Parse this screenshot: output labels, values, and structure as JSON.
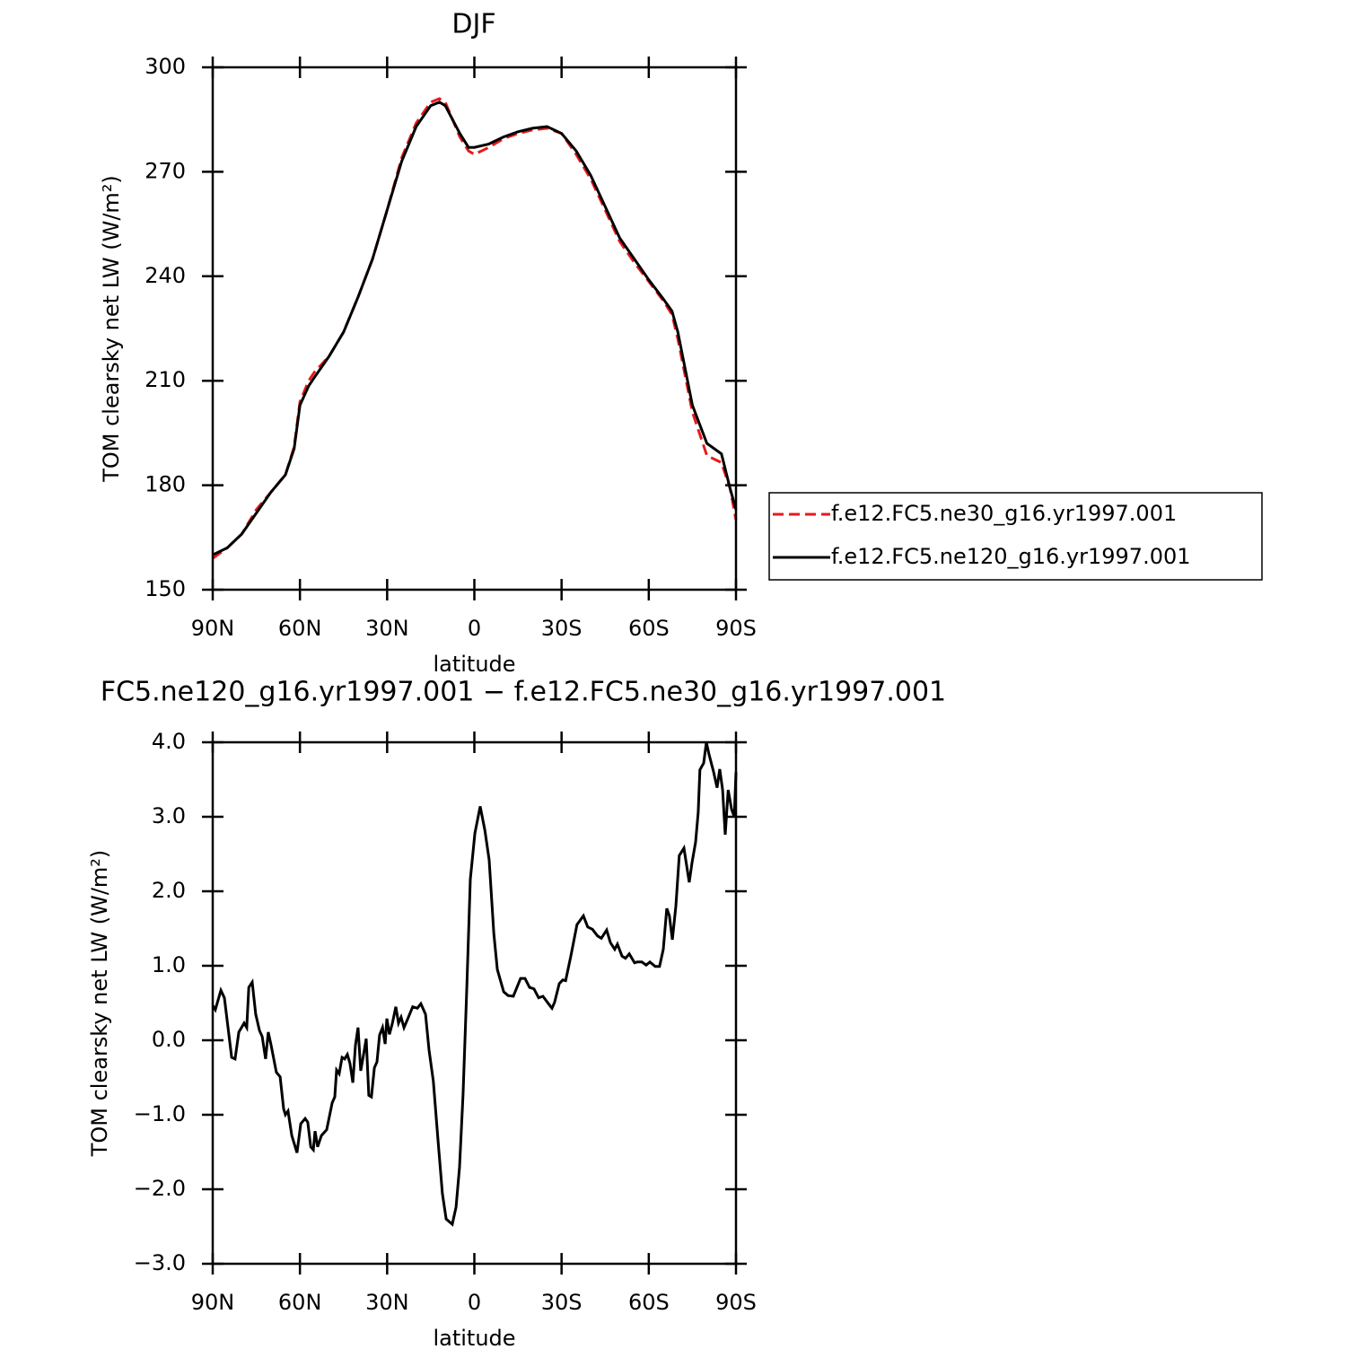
{
  "chart_data": [
    {
      "type": "line",
      "title": "DJF",
      "xlabel": "latitude",
      "ylabel": "TOM clearsky net LW (W/m²)",
      "x": [
        90,
        85,
        80,
        75,
        70,
        65,
        62,
        60,
        57,
        55,
        50,
        45,
        40,
        35,
        30,
        25,
        20,
        15,
        12,
        10,
        5,
        2,
        0,
        -5,
        -10,
        -15,
        -20,
        -25,
        -30,
        -35,
        -40,
        -45,
        -50,
        -55,
        -60,
        -65,
        -68,
        -70,
        -75,
        -80,
        -85,
        -88,
        -90
      ],
      "series": [
        {
          "name": "f.e12.FC5.ne30_g16.yr1997.001",
          "color": "#e8191c",
          "linestyle": "dashed",
          "values": [
            159,
            162,
            166,
            173,
            178,
            183,
            191,
            204,
            210,
            212.5,
            217,
            224,
            234,
            245,
            259,
            274,
            284,
            290,
            291,
            290,
            280,
            276,
            275,
            277,
            279.5,
            281,
            282,
            282.5,
            281,
            275,
            268,
            259,
            250,
            244,
            238.5,
            233,
            229,
            222,
            201,
            188.5,
            186.5,
            179,
            170
          ]
        },
        {
          "name": "f.e12.FC5.ne120_g16.yr1997.001",
          "color": "#000000",
          "linestyle": "solid",
          "values": [
            160,
            162,
            166,
            172,
            178,
            183,
            190.5,
            203,
            208.5,
            211,
            217,
            224,
            234,
            245,
            259,
            273,
            283,
            289,
            290,
            289,
            281,
            277,
            277,
            278,
            280,
            281.5,
            282.5,
            283,
            281,
            276,
            269,
            260,
            251,
            245,
            239,
            233.5,
            230,
            224,
            203,
            192,
            189,
            179,
            173
          ]
        }
      ],
      "xlim": [
        90,
        -90
      ],
      "xticks": [
        {
          "value": 90,
          "label": "90N"
        },
        {
          "value": 60,
          "label": "60N"
        },
        {
          "value": 30,
          "label": "30N"
        },
        0,
        {
          "value": -30,
          "label": "30S"
        },
        {
          "value": -60,
          "label": "60S"
        },
        {
          "value": -90,
          "label": "90S"
        }
      ],
      "ylim": [
        150,
        300
      ],
      "yticks": [
        150,
        180,
        210,
        240,
        270,
        300
      ],
      "legend": "right"
    },
    {
      "type": "line",
      "title": "FC5.ne120_g16.yr1997.001 − f.e12.FC5.ne30_g16.yr1997.001",
      "xlabel": "latitude",
      "ylabel": "TOM clearsky net LW (W/m²)",
      "x": [
        90,
        89.1,
        87.2,
        86.0,
        83.5,
        82.3,
        81.0,
        79.2,
        78.3,
        77.6,
        76.4,
        75.2,
        73.9,
        73.0,
        71.8,
        70.9,
        69.9,
        68.1,
        66.8,
        65.6,
        65.0,
        64.1,
        62.8,
        61.0,
        59.7,
        58.2,
        57.3,
        56.3,
        55.4,
        54.8,
        53.9,
        52.6,
        50.8,
        48.9,
        48.0,
        47.4,
        46.5,
        45.5,
        44.6,
        43.7,
        42.8,
        41.8,
        40.9,
        40.0,
        39.1,
        38.1,
        37.2,
        36.3,
        35.4,
        34.4,
        33.5,
        32.6,
        31.6,
        30.7,
        30.1,
        29.2,
        28.2,
        27.0,
        26.1,
        25.2,
        24.2,
        23.0,
        21.2,
        19.6,
        18.4,
        16.8,
        15.6,
        14.1,
        12.5,
        11.0,
        9.7,
        7.6,
        6.3,
        5.1,
        3.9,
        2.6,
        1.4,
        -0.2,
        -2.0,
        -3.6,
        -5.1,
        -6.7,
        -7.9,
        -10.1,
        -11.6,
        -13.4,
        -15.9,
        -17.4,
        -19.0,
        -20.5,
        -22.1,
        -23.6,
        -25.5,
        -26.7,
        -27.6,
        -29.2,
        -30.4,
        -31.4,
        -33.2,
        -35.3,
        -37.5,
        -39.0,
        -40.6,
        -42.4,
        -43.7,
        -45.5,
        -46.8,
        -48.3,
        -49.2,
        -50.8,
        -52.0,
        -53.3,
        -55.1,
        -56.0,
        -57.6,
        -59.1,
        -60.4,
        -62.2,
        -63.7,
        -65.0,
        -66.2,
        -67.1,
        -68.1,
        -69.3,
        -70.5,
        -72.1,
        -73.9,
        -74.9,
        -76.1,
        -77.0,
        -77.6,
        -78.9,
        -79.8,
        -80.7,
        -82.3,
        -83.5,
        -84.4,
        -85.4,
        -86.3,
        -87.3,
        -88.5,
        -89.4,
        -90
      ],
      "series": [
        {
          "color": "#000000",
          "linestyle": "solid",
          "values": [
            0.47,
            0.41,
            0.67,
            0.57,
            -0.23,
            -0.25,
            0.11,
            0.23,
            0.17,
            0.71,
            0.78,
            0.35,
            0.13,
            0.05,
            -0.25,
            0.11,
            -0.07,
            -0.43,
            -0.49,
            -0.92,
            -1.0,
            -0.95,
            -1.28,
            -1.51,
            -1.12,
            -1.05,
            -1.1,
            -1.43,
            -1.47,
            -1.22,
            -1.43,
            -1.28,
            -1.2,
            -0.84,
            -0.76,
            -0.4,
            -0.45,
            -0.23,
            -0.25,
            -0.19,
            -0.31,
            -0.57,
            -0.07,
            0.17,
            -0.41,
            -0.19,
            0.02,
            -0.74,
            -0.76,
            -0.37,
            -0.29,
            0.07,
            0.17,
            -0.05,
            0.29,
            0.08,
            0.23,
            0.45,
            0.23,
            0.31,
            0.17,
            0.28,
            0.45,
            0.43,
            0.49,
            0.35,
            -0.13,
            -0.55,
            -1.34,
            -2.06,
            -2.4,
            -2.47,
            -2.24,
            -1.7,
            -0.73,
            0.71,
            2.16,
            2.78,
            3.14,
            2.82,
            2.42,
            1.43,
            0.95,
            0.65,
            0.6,
            0.59,
            0.83,
            0.83,
            0.71,
            0.69,
            0.57,
            0.59,
            0.49,
            0.43,
            0.51,
            0.76,
            0.81,
            0.8,
            1.13,
            1.55,
            1.67,
            1.52,
            1.49,
            1.4,
            1.37,
            1.48,
            1.31,
            1.22,
            1.29,
            1.13,
            1.1,
            1.16,
            1.04,
            1.05,
            1.05,
            1.01,
            1.05,
            0.99,
            0.99,
            1.22,
            1.77,
            1.67,
            1.35,
            1.8,
            2.48,
            2.58,
            2.12,
            2.39,
            2.66,
            3.06,
            3.63,
            3.72,
            4.0,
            3.84,
            3.6,
            3.39,
            3.64,
            3.36,
            2.76,
            3.36,
            3.1,
            3.0,
            3.6
          ]
        }
      ],
      "xlim": [
        90,
        -90
      ],
      "xticks": [
        {
          "value": 90,
          "label": "90N"
        },
        {
          "value": 60,
          "label": "60N"
        },
        {
          "value": 30,
          "label": "30N"
        },
        0,
        {
          "value": -30,
          "label": "30S"
        },
        {
          "value": -60,
          "label": "60S"
        },
        {
          "value": -90,
          "label": "90S"
        }
      ],
      "ylim": [
        -3,
        4
      ],
      "yticks": [
        {
          "value": -3,
          "label": "−3.0"
        },
        {
          "value": -2,
          "label": "−2.0"
        },
        {
          "value": -1,
          "label": "−1.0"
        },
        {
          "value": 0,
          "label": "0.0"
        },
        {
          "value": 1,
          "label": "1.0"
        },
        {
          "value": 2,
          "label": "2.0"
        },
        {
          "value": 3,
          "label": "3.0"
        },
        {
          "value": 4,
          "label": "4.0"
        }
      ]
    }
  ]
}
